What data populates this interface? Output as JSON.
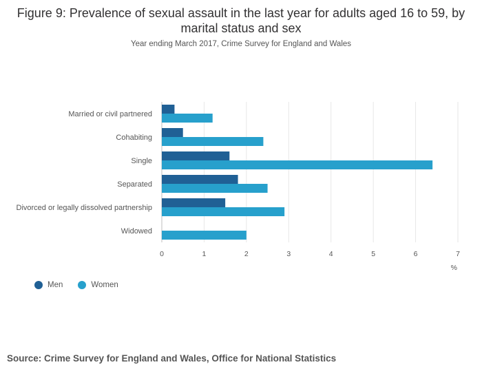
{
  "chart_data": {
    "type": "bar",
    "orientation": "horizontal",
    "title": "Figure 9: Prevalence of sexual assault in the last year for adults aged 16 to 59, by marital status and sex",
    "subtitle": "Year ending March 2017, Crime Survey for England and Wales",
    "categories": [
      "Married or civil partnered",
      "Cohabiting",
      "Single",
      "Separated",
      "Divorced or legally dissolved partnership",
      "Widowed"
    ],
    "series": [
      {
        "name": "Men",
        "color": "#206095",
        "values": [
          0.3,
          0.5,
          1.6,
          1.8,
          1.5,
          0
        ]
      },
      {
        "name": "Women",
        "color": "#27a0cc",
        "values": [
          1.2,
          2.4,
          6.4,
          2.5,
          2.9,
          2.0
        ]
      }
    ],
    "xlim": [
      0,
      7
    ],
    "xticks": [
      "0",
      "1",
      "2",
      "3",
      "4",
      "5",
      "6",
      "7"
    ],
    "xunit": "%",
    "grid": true,
    "legend": "bottom-left"
  },
  "source": "Source: Crime Survey for England and Wales, Office for National Statistics"
}
